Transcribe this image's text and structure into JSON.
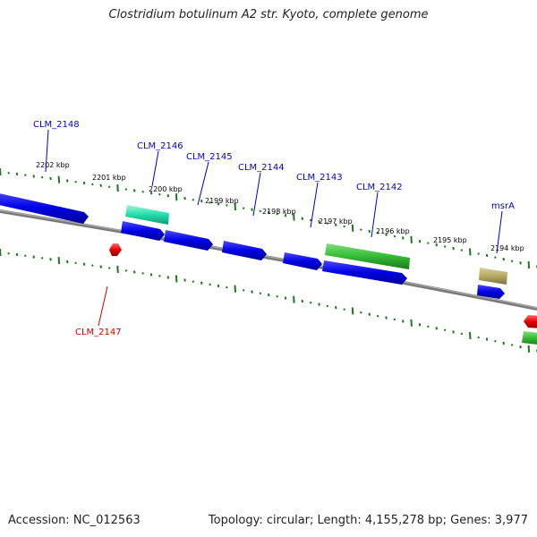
{
  "title": "Clostridium botulinum A2 str. Kyoto, complete genome",
  "footer": {
    "accession": "Accession: NC_012563",
    "topology": "Topology: circular; Length: 4,155,278 bp; Genes: 3,977"
  },
  "colors": {
    "backbone": "#7a7a7a",
    "tick": "#1a7a1a",
    "cds_forward": "#0000e6",
    "cds_reverse": "#e60000",
    "label_forward": "#0000cc",
    "label_reverse": "#cc0000",
    "feature_green": "#33bb33",
    "feature_teal": "#22ddaa",
    "feature_khaki": "#b4a862"
  },
  "ticks": [
    "2202 kbp",
    "2201 kbp",
    "2200 kbp",
    "2199 kbp",
    "2198 kbp",
    "2197 kbp",
    "2196 kbp",
    "2195 kbp",
    "2194 kbp"
  ],
  "genes": [
    {
      "name": "CLM_2148",
      "strand": "+"
    },
    {
      "name": "CLM_2147",
      "strand": "-"
    },
    {
      "name": "CLM_2146",
      "strand": "+"
    },
    {
      "name": "CLM_2145",
      "strand": "+"
    },
    {
      "name": "CLM_2144",
      "strand": "+"
    },
    {
      "name": "CLM_2143",
      "strand": "+"
    },
    {
      "name": "CLM_2142",
      "strand": "+"
    },
    {
      "name": "msrA",
      "strand": "+"
    }
  ]
}
